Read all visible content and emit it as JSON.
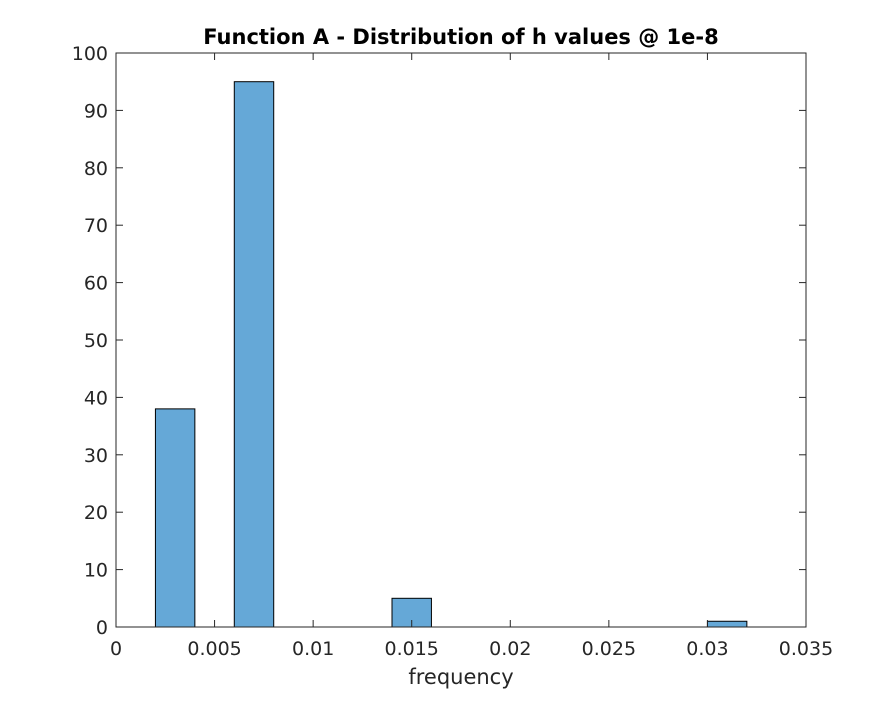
{
  "chart_data": {
    "type": "bar",
    "title": "Function A - Distribution of h values @ 1e-8",
    "xlabel": "frequency",
    "ylabel": "",
    "xlim": [
      0,
      0.035
    ],
    "ylim": [
      0,
      100
    ],
    "xticks": [
      0,
      0.005,
      0.01,
      0.015,
      0.02,
      0.025,
      0.03,
      0.035
    ],
    "xtick_labels": [
      "0",
      "0.005",
      "0.01",
      "0.015",
      "0.02",
      "0.025",
      "0.03",
      "0.035"
    ],
    "yticks": [
      0,
      10,
      20,
      30,
      40,
      50,
      60,
      70,
      80,
      90,
      100
    ],
    "ytick_labels": [
      "0",
      "10",
      "20",
      "30",
      "40",
      "50",
      "60",
      "70",
      "80",
      "90",
      "100"
    ],
    "grid": false,
    "bar_color": "#65a8d7",
    "bar_edge_color": "#000000",
    "bins": [
      {
        "x0": 0.002,
        "x1": 0.004,
        "value": 38
      },
      {
        "x0": 0.006,
        "x1": 0.008,
        "value": 95
      },
      {
        "x0": 0.014,
        "x1": 0.016,
        "value": 5
      },
      {
        "x0": 0.03,
        "x1": 0.032,
        "value": 1
      }
    ]
  }
}
